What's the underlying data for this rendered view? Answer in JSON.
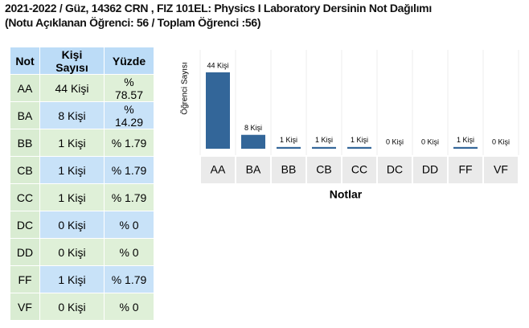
{
  "header": {
    "title": "2021-2022 / Güz, 14362 CRN , FIZ 101EL: Physics I Laboratory Dersinin Not Dağılımı",
    "subtitle": "(Notu Açıklanan Öğrenci: 56 / Toplam Öğrenci :56)"
  },
  "table": {
    "columns": [
      "Not",
      "Kişi Sayısı",
      "Yüzde"
    ],
    "rows": [
      [
        "AA",
        "44 Kişi",
        "% 78.57"
      ],
      [
        "BA",
        "8 Kişi",
        "% 14.29"
      ],
      [
        "BB",
        "1 Kişi",
        "% 1.79"
      ],
      [
        "CB",
        "1 Kişi",
        "% 1.79"
      ],
      [
        "CC",
        "1 Kişi",
        "% 1.79"
      ],
      [
        "DC",
        "0 Kişi",
        "% 0"
      ],
      [
        "DD",
        "0 Kişi",
        "% 0"
      ],
      [
        "FF",
        "1 Kişi",
        "% 1.79"
      ],
      [
        "VF",
        "0 Kişi",
        "% 0"
      ]
    ]
  },
  "chart_data": {
    "type": "bar",
    "y_label": "Öğrenci Sayısı",
    "x_label": "Notlar",
    "color": "#336699",
    "categories": [
      "AA",
      "BA",
      "BB",
      "CB",
      "CC",
      "DC",
      "DD",
      "FF",
      "VF"
    ],
    "values": [
      44,
      8,
      1,
      1,
      1,
      0,
      0,
      1,
      0
    ],
    "value_labels": [
      "44 Kişi",
      "8 Kişi",
      "1 Kişi",
      "1 Kişi",
      "1 Kişi",
      "0 Kişi",
      "0 Kişi",
      "1 Kişi",
      "0 Kişi"
    ]
  }
}
